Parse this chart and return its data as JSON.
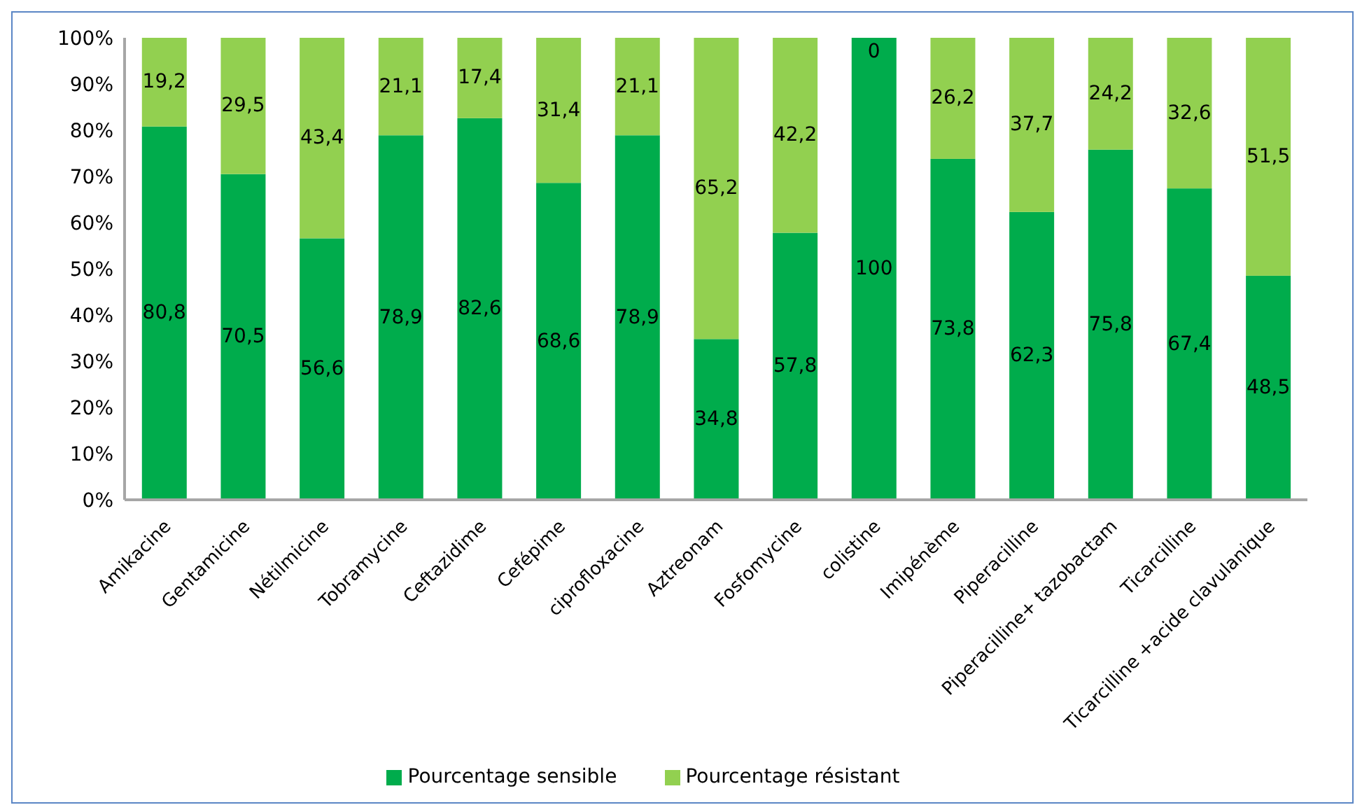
{
  "chart_data": {
    "type": "bar",
    "stacked": true,
    "categories": [
      "Amikacine",
      "Gentamicine",
      "Nétilmicine",
      "Tobramycine",
      "Ceftazidime",
      "Cefépime",
      "ciprofloxacine",
      "Aztreonam",
      "Fosfomycine",
      "colistine",
      "Imipénème",
      "Piperacilline",
      "Piperacilline+ tazobactam",
      "Ticarcilline",
      "Ticarcilline +acide clavulanique"
    ],
    "series": [
      {
        "name": "Pourcentage sensible",
        "color": "#00ac4c",
        "values": [
          80.8,
          70.5,
          56.6,
          78.9,
          82.6,
          68.6,
          78.9,
          34.8,
          57.8,
          100,
          73.8,
          62.3,
          75.8,
          67.4,
          48.5
        ],
        "value_labels": [
          "80,8",
          "70,5",
          "56,6",
          "78,9",
          "82,6",
          "68,6",
          "78,9",
          "34,8",
          "57,8",
          "100",
          "73,8",
          "62,3",
          "75,8",
          "67,4",
          "48,5"
        ]
      },
      {
        "name": "Pourcentage résistant",
        "color": "#92d050",
        "values": [
          19.2,
          29.5,
          43.4,
          21.1,
          17.4,
          31.4,
          21.1,
          65.2,
          42.2,
          0,
          26.2,
          37.7,
          24.2,
          32.6,
          51.5
        ],
        "value_labels": [
          "19,2",
          "29,5",
          "43,4",
          "21,1",
          "17,4",
          "31,4",
          "21,1",
          "65,2",
          "42,2",
          "0",
          "26,2",
          "37,7",
          "24,2",
          "32,6",
          "51,5"
        ]
      }
    ],
    "ylim": [
      0,
      100
    ],
    "yticks": [
      {
        "value": 0,
        "label": "0%"
      },
      {
        "value": 10,
        "label": "10%"
      },
      {
        "value": 20,
        "label": "20%"
      },
      {
        "value": 30,
        "label": "30%"
      },
      {
        "value": 40,
        "label": "40%"
      },
      {
        "value": 50,
        "label": "50%"
      },
      {
        "value": 60,
        "label": "60%"
      },
      {
        "value": 70,
        "label": "70%"
      },
      {
        "value": 80,
        "label": "80%"
      },
      {
        "value": 90,
        "label": "90%"
      },
      {
        "value": 100,
        "label": "100%"
      }
    ],
    "grid": false,
    "legend": "bottom"
  }
}
